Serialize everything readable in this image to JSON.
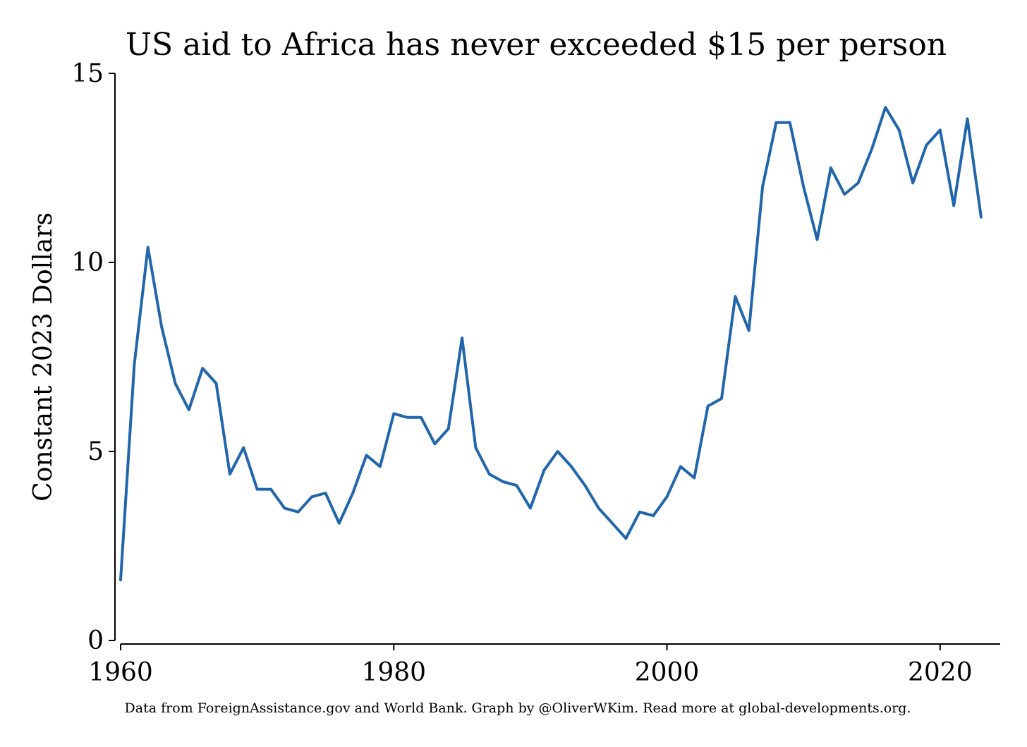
{
  "chart_data": {
    "type": "line",
    "title": "US aid to Africa has never exceeded $15 per person",
    "ylabel": "Constant 2023 Dollars",
    "xlabel": "",
    "note": "Data from ForeignAssistance.gov and World Bank. Graph by @OliverWKim. Read more at global-developments.org.",
    "xlim": [
      1960,
      2024.4
    ],
    "ylim": [
      0,
      15
    ],
    "xticks": [
      1960,
      1980,
      2000,
      2020
    ],
    "yticks": [
      0,
      5,
      10,
      15
    ],
    "grid": false,
    "colors": {
      "line": "#2166ac",
      "axis": "#000000",
      "text": "#000000",
      "background": "#ffffff"
    },
    "series": [
      {
        "x": [
          1960,
          1961,
          1962,
          1963,
          1964,
          1965,
          1966,
          1967,
          1968,
          1969,
          1970,
          1971,
          1972,
          1973,
          1974,
          1975,
          1976,
          1977,
          1978,
          1979,
          1980,
          1981,
          1982,
          1983,
          1984,
          1985,
          1986,
          1987,
          1988,
          1989,
          1990,
          1991,
          1992,
          1993,
          1994,
          1995,
          1996,
          1997,
          1998,
          1999,
          2000,
          2001,
          2002,
          2003,
          2004,
          2005,
          2006,
          2007,
          2008,
          2009,
          2010,
          2011,
          2012,
          2013,
          2014,
          2015,
          2016,
          2017,
          2018,
          2019,
          2020,
          2021,
          2022,
          2023
        ],
        "values": [
          1.6,
          7.3,
          10.4,
          8.3,
          6.8,
          6.1,
          7.2,
          6.8,
          4.4,
          5.1,
          4.0,
          4.0,
          3.5,
          3.4,
          3.8,
          3.9,
          3.1,
          3.9,
          4.9,
          4.6,
          6.0,
          5.9,
          5.9,
          5.2,
          5.6,
          8.0,
          5.1,
          4.4,
          4.2,
          4.1,
          3.5,
          4.5,
          5.0,
          4.6,
          4.1,
          3.5,
          3.1,
          2.7,
          3.4,
          3.3,
          3.8,
          4.6,
          4.3,
          6.2,
          6.4,
          9.1,
          8.2,
          12.0,
          13.7,
          13.7,
          12.0,
          10.6,
          12.5,
          11.8,
          12.1,
          13.0,
          14.1,
          13.5,
          12.1,
          13.1,
          13.5,
          11.5,
          13.8,
          11.2
        ]
      }
    ]
  }
}
